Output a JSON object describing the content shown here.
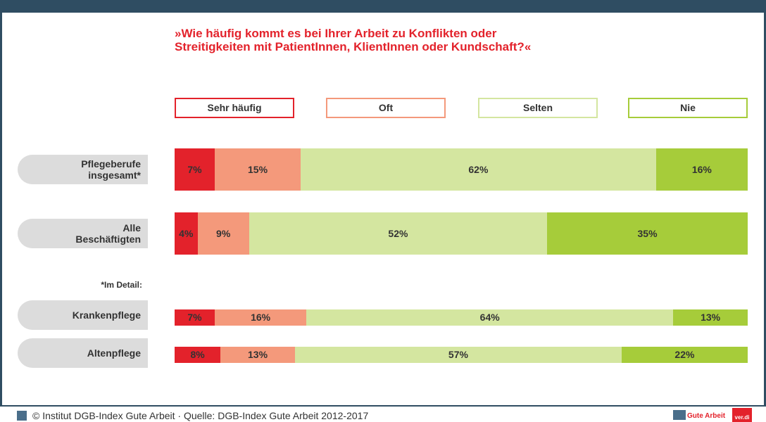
{
  "chart_data": {
    "type": "stacked-bar-horizontal",
    "title_lines": [
      "»Wie häufig kommt es bei Ihrer Arbeit zu Konflikten oder",
      "Streitigkeiten mit PatientInnen, KlientInnen oder Kundschaft?«"
    ],
    "categories": [
      "Pflegeberufe insgesamt*",
      "Alle Beschäftigten",
      "Krankenpflege",
      "Altenpflege"
    ],
    "note": "*Im Detail:",
    "xlim": [
      0,
      100
    ],
    "series": [
      {
        "name": "Sehr häufig",
        "color": "#e3222b",
        "values": [
          7,
          4,
          7,
          8
        ],
        "value_labels": [
          "7%",
          "4%",
          "7%",
          "8%"
        ]
      },
      {
        "name": "Oft",
        "color": "#f4997b",
        "values": [
          15,
          9,
          16,
          13
        ],
        "value_labels": [
          "15%",
          "9%",
          "16%",
          "13%"
        ]
      },
      {
        "name": "Selten",
        "color": "#d4e6a0",
        "values": [
          62,
          52,
          64,
          57
        ],
        "value_labels": [
          "62%",
          "52%",
          "64%",
          "57%"
        ]
      },
      {
        "name": "Nie",
        "color": "#a6cc3a",
        "values": [
          16,
          35,
          13,
          22
        ],
        "value_labels": [
          "16%",
          "35%",
          "13%",
          "22%"
        ]
      }
    ],
    "footer": "© Institut DGB-Index Gute Arbeit · Quelle: DGB-Index Gute Arbeit 2012-2017",
    "logo_text": "Gute Arbeit",
    "logo_badge": "ver.di"
  }
}
